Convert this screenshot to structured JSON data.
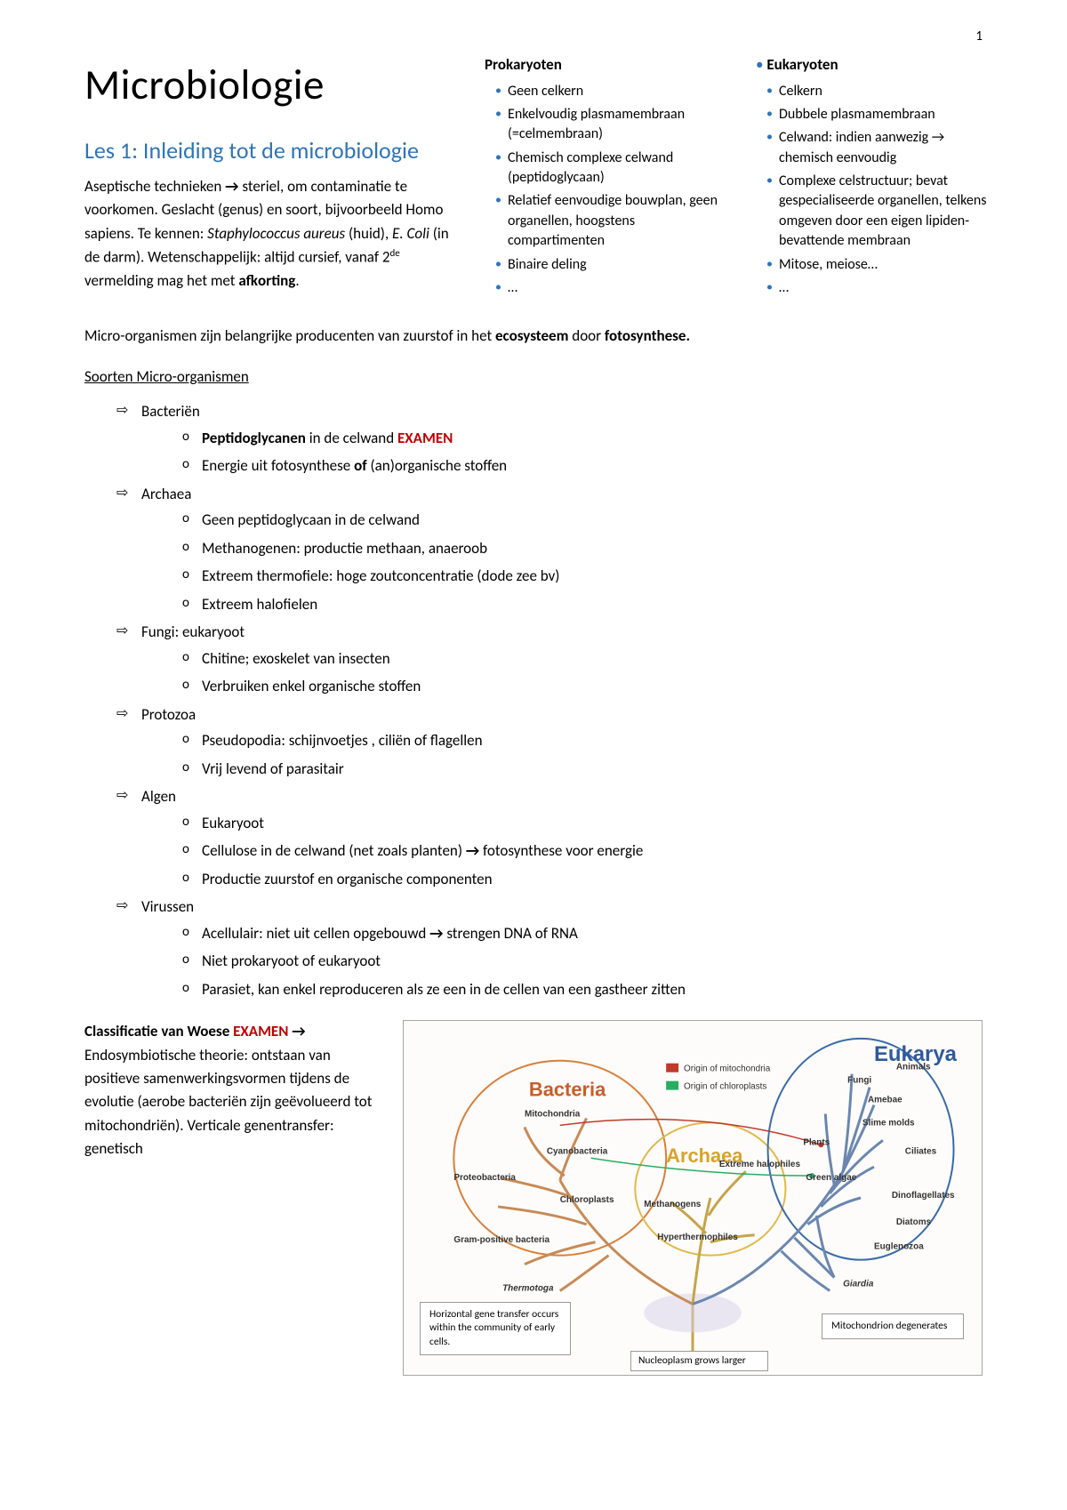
{
  "page_number": "1",
  "main_title": "Microbiologie",
  "lesson_title": "Les 1: Inleiding tot de microbiologie",
  "intro_html": "Aseptische technieken <span class='arrow'>→</span> steriel, om contaminatie te voorkomen. Geslacht (genus) en soort, bijvoorbeeld Homo sapiens. Te kennen: <span class='ital'>Staphylococcus aureus</span> (huid), <span class='ital'>E. Coli</span> (in de darm). Wetenschappelijk: altijd cursief, vanaf 2<span class='sup'>de</span> vermelding mag het met <span class='bold'>afkorting</span>.",
  "prokaryoten": {
    "title": "Prokaryoten",
    "items": [
      "Geen celkern",
      "Enkelvoudig plasmamembraan (=celmembraan)",
      "Chemisch complexe celwand (peptidoglycaan)",
      "Relatief eenvoudige bouwplan, geen organellen, hoogstens compartimenten",
      "Binaire deling",
      "…"
    ]
  },
  "eukaryoten": {
    "title": "Eukaryoten",
    "items": [
      "Celkern",
      "Dubbele plasmamembraan",
      "Celwand: indien aanwezig → chemisch eenvoudig",
      "Complexe celstructuur; bevat gespecialiseerde organellen, telkens omgeven door een eigen lipiden-bevattende membraan",
      "Mitose, meiose…",
      "…"
    ]
  },
  "full_paragraph_html": "Micro-organismen zijn belangrijke producenten van zuurstof in het <span class='bold'>ecosysteem</span> door <span class='bold'>fotosynthese.</span>",
  "section_heading": "Soorten Micro-organismen",
  "organisms": [
    {
      "name": "Bacteriën",
      "subs": [
        "<span class='bold'>Peptidoglycanen</span> in de celwand <span class='examen'>EXAMEN</span>",
        "Energie uit fotosynthese <span class='bold'>of</span> (an)organische stoffen"
      ]
    },
    {
      "name": "Archaea",
      "subs": [
        "Geen peptidoglycaan in de celwand",
        "Methanogenen: productie methaan, anaeroob",
        "Extreem thermofiele: hoge zoutconcentratie (dode zee bv)",
        "Extreem halofielen"
      ]
    },
    {
      "name": "Fungi: eukaryoot",
      "subs": [
        "Chitine; exoskelet van insecten",
        "Verbruiken enkel organische stoffen"
      ]
    },
    {
      "name": "Protozoa",
      "subs": [
        "Pseudopodia: schijnvoetjes , ciliën of flagellen",
        "Vrij levend of parasitair"
      ]
    },
    {
      "name": "Algen",
      "subs": [
        "Eukaryoot",
        "Cellulose in de celwand (net zoals planten) <span class='arrow'>→</span> fotosynthese voor energie",
        "Productie zuurstof en organische componenten"
      ]
    },
    {
      "name": "Virussen",
      "subs": [
        "Acellulair: niet uit cellen opgebouwd <span class='arrow'>→</span> strengen DNA of RNA",
        "Niet prokaryoot of eukaryoot",
        "Parasiet, kan enkel reproduceren als ze een in de cellen van een gastheer zitten"
      ]
    }
  ],
  "woese_html": "<span class='bold'>Classificatie van Woese</span> <span class='examen'>EXAMEN</span> <span class='arrow'>→</span> Endosymbiotische theorie: ontstaan van positieve samenwerkingsvormen tijdens de evolutie (aerobe bacteriën zijn geëvolueerd tot mitochondriën). Verticale genentransfer: genetisch",
  "tree": {
    "legend_mito": "Origin of mitochondria",
    "legend_chlo": "Origin of chloroplasts",
    "legend_hgt": "Horizontal gene transfer occurs within the community of early cells.",
    "label_nucleoplasm": "Nucleoplasm grows larger",
    "label_mitodeg": "Mitochondrion degenerates",
    "domain_bacteria": "Bacteria",
    "domain_archaea": "Archaea",
    "domain_eukarya": "Eukarya",
    "bacteria_terms": [
      "Mitochondria",
      "Cyanobacteria",
      "Proteobacteria",
      "Chloroplasts",
      "Gram-positive bacteria",
      "Thermotoga"
    ],
    "archaea_terms": [
      "Methanogens",
      "Extreme halophiles",
      "Hyperthermophiles"
    ],
    "eukarya_terms": [
      "Animals",
      "Fungi",
      "Amebae",
      "Slime molds",
      "Plants",
      "Ciliates",
      "Green algae",
      "Dinoflagellates",
      "Diatoms",
      "Euglenozoa",
      "Giardia"
    ],
    "colors": {
      "bacteria": "#c75d2a",
      "archaea": "#d6a32b",
      "eukarya": "#2e5a9c",
      "mito": "#c0392b",
      "chloro": "#27ae60",
      "branch_bac": "#c88a56",
      "branch_arc": "#c7a34a",
      "branch_euk": "#6a87b0"
    }
  }
}
